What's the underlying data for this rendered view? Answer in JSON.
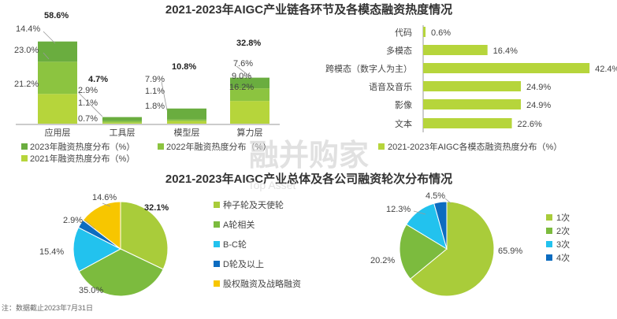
{
  "colors": {
    "c2023": "#6aad3f",
    "c2022": "#8cc440",
    "c2021": "#b6d53b",
    "pie_seed": "#a9cc3a",
    "pie_a": "#7cbb3e",
    "pie_bc": "#22c2ee",
    "pie_d": "#0c6cc0",
    "pie_equity": "#f7c600",
    "pie_round1": "#a9cc3a",
    "pie_round2": "#7cbb3e",
    "pie_round3": "#22c2ee",
    "pie_round4": "#0c6cc0"
  },
  "watermark": {
    "main": "融并购家",
    "sub": "Top Asset"
  },
  "note": "注：数据截止2023年7月31日",
  "chart_data": [
    {
      "type": "bar",
      "stacked": true,
      "title": "2021-2023年AIGC产业链各环节及各模态融资热度情况",
      "categories": [
        "应用层",
        "工具层",
        "模型层",
        "算力层"
      ],
      "series": [
        {
          "name": "2021年融资热度分布（%）",
          "values": [
            21.2,
            0.7,
            1.8,
            16.2
          ],
          "labels": [
            "21.2%",
            "0.7%",
            "1.8%",
            "16.2%"
          ]
        },
        {
          "name": "2022年融资热度分布（%）",
          "values": [
            23.0,
            1.1,
            1.1,
            9.0
          ],
          "labels": [
            "23.0%",
            "1.1%",
            "1.1%",
            "9.0%"
          ]
        },
        {
          "name": "2023年融资热度分布（%）",
          "values": [
            14.4,
            2.9,
            7.9,
            7.6
          ],
          "labels": [
            "14.4%",
            "2.9%",
            "7.9%",
            "7.6%"
          ]
        }
      ],
      "totals": [
        58.6,
        4.7,
        10.8,
        32.8
      ],
      "total_labels": [
        "58.6%",
        "4.7%",
        "10.8%",
        "32.8%"
      ],
      "legend": "bottom"
    },
    {
      "type": "bar",
      "orientation": "horizontal",
      "categories": [
        "代码",
        "多模态",
        "跨模态（数字人为主）",
        "语音及音乐",
        "影像",
        "文本"
      ],
      "series": [
        {
          "name": "2021-2023年AIGC各模态融资热度分布（%）",
          "values": [
            0.6,
            16.4,
            42.4,
            24.9,
            24.9,
            22.6
          ],
          "labels": [
            "0.6%",
            "16.4%",
            "42.4%",
            "24.9%",
            "24.9%",
            "22.6%"
          ]
        }
      ],
      "legend": "bottom"
    },
    {
      "type": "pie",
      "title": "2021-2023年AIGC产业总体及各公司融资轮次分布情况",
      "slices": [
        {
          "name": "种子轮及天使轮",
          "value": 32.1,
          "label": "32.1%"
        },
        {
          "name": "A轮相关",
          "value": 35.0,
          "label": "35.0%"
        },
        {
          "name": "B-C轮",
          "value": 15.4,
          "label": "15.4%"
        },
        {
          "name": "D轮及以上",
          "value": 2.9,
          "label": "2.9%"
        },
        {
          "name": "股权融资及战略融资",
          "value": 14.6,
          "label": "14.6%"
        }
      ],
      "legend": "right"
    },
    {
      "type": "pie",
      "slices": [
        {
          "name": "1次",
          "value": 65.9,
          "label": "65.9%"
        },
        {
          "name": "2次",
          "value": 20.2,
          "label": "20.2%"
        },
        {
          "name": "3次",
          "value": 12.3,
          "label": "12.3%"
        },
        {
          "name": "4次",
          "value": 4.5,
          "label": "4.5%"
        }
      ],
      "legend": "right"
    }
  ]
}
